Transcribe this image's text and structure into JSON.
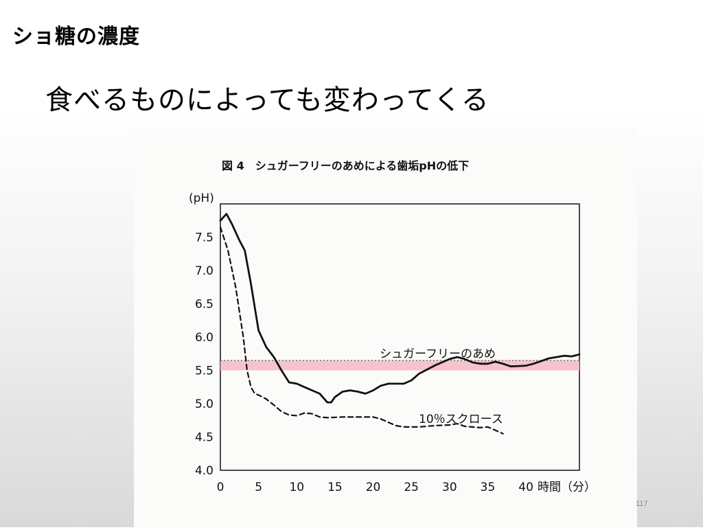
{
  "slide": {
    "heading": "ショ糖の濃度",
    "subtitle": "食べるものによっても変わってくる",
    "page_number": "117"
  },
  "chart_data": {
    "type": "line",
    "title": "図 4　シュガーフリーのあめによる歯垢pHの低下",
    "xlabel": "時間（分）",
    "ylabel": "(pH)",
    "x_ticks": [
      "0",
      "5",
      "10",
      "15",
      "20",
      "25",
      "30",
      "35",
      "40"
    ],
    "y_ticks": [
      "4.0",
      "4.5",
      "5.0",
      "5.5",
      "6.0",
      "6.5",
      "7.0",
      "7.5"
    ],
    "xlim": [
      0,
      47
    ],
    "ylim": [
      4.0,
      8.0
    ],
    "grid": false,
    "threshold_band": {
      "from": 5.5,
      "to": 5.65,
      "color": "#f2b8c6"
    },
    "threshold_line": 5.65,
    "series": [
      {
        "name": "シュガーフリーのあめ",
        "style": "solid",
        "points": [
          [
            0,
            7.75
          ],
          [
            0.8,
            7.85
          ],
          [
            1.5,
            7.7
          ],
          [
            2.5,
            7.45
          ],
          [
            3.2,
            7.3
          ],
          [
            4,
            6.8
          ],
          [
            5,
            6.1
          ],
          [
            6,
            5.85
          ],
          [
            7,
            5.7
          ],
          [
            8,
            5.5
          ],
          [
            9,
            5.32
          ],
          [
            10,
            5.3
          ],
          [
            11,
            5.25
          ],
          [
            12,
            5.2
          ],
          [
            13,
            5.15
          ],
          [
            14,
            5.02
          ],
          [
            14.5,
            5.02
          ],
          [
            15,
            5.1
          ],
          [
            16,
            5.18
          ],
          [
            17,
            5.2
          ],
          [
            18,
            5.18
          ],
          [
            19,
            5.15
          ],
          [
            20,
            5.2
          ],
          [
            21,
            5.27
          ],
          [
            22,
            5.3
          ],
          [
            24,
            5.3
          ],
          [
            25,
            5.35
          ],
          [
            26,
            5.45
          ],
          [
            28,
            5.57
          ],
          [
            30,
            5.67
          ],
          [
            31,
            5.7
          ],
          [
            32,
            5.67
          ],
          [
            33,
            5.62
          ],
          [
            34,
            5.6
          ],
          [
            35,
            5.6
          ],
          [
            36,
            5.63
          ],
          [
            37,
            5.6
          ],
          [
            38,
            5.56
          ],
          [
            40,
            5.57
          ],
          [
            41,
            5.6
          ],
          [
            43,
            5.68
          ],
          [
            45,
            5.72
          ],
          [
            46,
            5.71
          ],
          [
            47,
            5.74
          ]
        ]
      },
      {
        "name": "10％スクロース",
        "style": "dashed",
        "points": [
          [
            0,
            7.65
          ],
          [
            1,
            7.3
          ],
          [
            2,
            6.75
          ],
          [
            3,
            6.0
          ],
          [
            3.5,
            5.5
          ],
          [
            4,
            5.25
          ],
          [
            4.5,
            5.15
          ],
          [
            5,
            5.13
          ],
          [
            6,
            5.07
          ],
          [
            7,
            4.98
          ],
          [
            8,
            4.88
          ],
          [
            9,
            4.83
          ],
          [
            10,
            4.82
          ],
          [
            11,
            4.86
          ],
          [
            12,
            4.85
          ],
          [
            13,
            4.8
          ],
          [
            14,
            4.79
          ],
          [
            16,
            4.8
          ],
          [
            18,
            4.8
          ],
          [
            20,
            4.8
          ],
          [
            21,
            4.77
          ],
          [
            22,
            4.72
          ],
          [
            23,
            4.67
          ],
          [
            24,
            4.65
          ],
          [
            26,
            4.65
          ],
          [
            28,
            4.67
          ],
          [
            30,
            4.68
          ],
          [
            31,
            4.7
          ],
          [
            32,
            4.66
          ],
          [
            34,
            4.64
          ],
          [
            35,
            4.65
          ],
          [
            36,
            4.6
          ],
          [
            37,
            4.55
          ]
        ]
      }
    ]
  }
}
